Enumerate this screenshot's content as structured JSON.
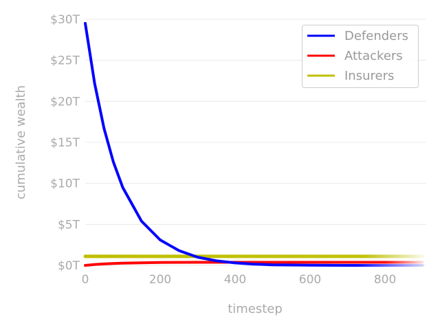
{
  "chart_data": {
    "type": "line",
    "title": "",
    "xlabel": "timestep",
    "ylabel": "cumulative wealth",
    "xlim": [
      0,
      910
    ],
    "ylim": [
      0,
      30
    ],
    "x_ticks": [
      0,
      200,
      400,
      600,
      800
    ],
    "x_tick_labels": [
      "0",
      "200",
      "400",
      "600",
      "800"
    ],
    "y_ticks": [
      0,
      5,
      10,
      15,
      20,
      25,
      30
    ],
    "y_tick_labels": [
      "$0T",
      "$5T",
      "$10T",
      "$15T",
      "$20T",
      "$25T",
      "$30T"
    ],
    "grid": "horizontal",
    "legend_position": "top-right",
    "x": [
      0,
      25,
      50,
      75,
      100,
      150,
      200,
      250,
      300,
      350,
      400,
      450,
      500,
      600,
      700,
      800,
      900
    ],
    "series": [
      {
        "name": "Defenders",
        "color": "#0000ff",
        "values": [
          29.5,
          22.2,
          16.7,
          12.6,
          9.5,
          5.4,
          3.1,
          1.8,
          1.0,
          0.55,
          0.3,
          0.15,
          0.07,
          0.02,
          0.0,
          0.0,
          0.0
        ]
      },
      {
        "name": "Attackers",
        "color": "#ff0000",
        "values": [
          0.0,
          0.1,
          0.18,
          0.23,
          0.27,
          0.32,
          0.35,
          0.37,
          0.38,
          0.38,
          0.38,
          0.38,
          0.38,
          0.38,
          0.38,
          0.38,
          0.38
        ]
      },
      {
        "name": "Insurers",
        "color": "#bfbf00",
        "values": [
          1.1,
          1.1,
          1.1,
          1.1,
          1.1,
          1.1,
          1.1,
          1.1,
          1.1,
          1.1,
          1.1,
          1.1,
          1.1,
          1.1,
          1.1,
          1.1,
          1.1
        ]
      }
    ]
  }
}
